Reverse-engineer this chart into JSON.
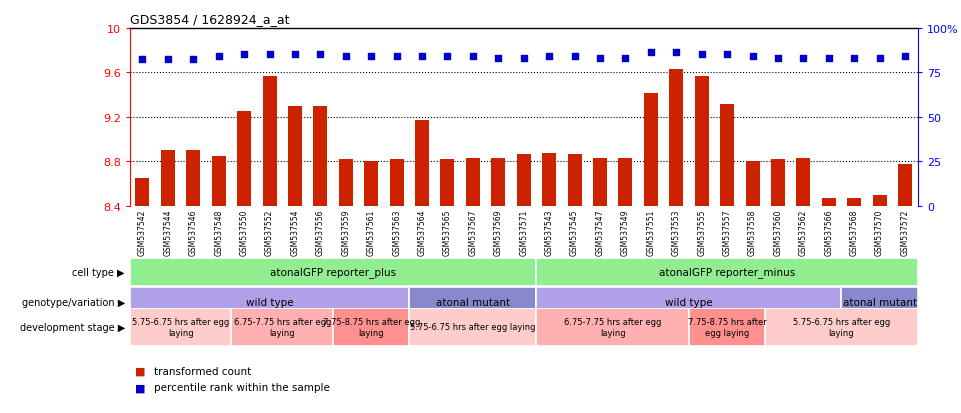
{
  "title": "GDS3854 / 1628924_a_at",
  "samples": [
    "GSM537542",
    "GSM537544",
    "GSM537546",
    "GSM537548",
    "GSM537550",
    "GSM537552",
    "GSM537554",
    "GSM537556",
    "GSM537559",
    "GSM537561",
    "GSM537563",
    "GSM537564",
    "GSM537565",
    "GSM537567",
    "GSM537569",
    "GSM537571",
    "GSM537543",
    "GSM537545",
    "GSM537547",
    "GSM537549",
    "GSM537551",
    "GSM537553",
    "GSM537555",
    "GSM537557",
    "GSM537558",
    "GSM537560",
    "GSM537562",
    "GSM537566",
    "GSM537568",
    "GSM537570",
    "GSM537572"
  ],
  "bar_values": [
    8.65,
    8.9,
    8.9,
    8.85,
    9.25,
    9.57,
    9.3,
    9.3,
    8.82,
    8.8,
    8.82,
    9.17,
    8.82,
    8.83,
    8.83,
    8.87,
    8.88,
    8.87,
    8.83,
    8.83,
    9.42,
    9.63,
    9.57,
    9.32,
    8.8,
    8.82,
    8.83,
    8.47,
    8.47,
    8.5,
    8.78
  ],
  "percentile_values": [
    9.72,
    9.72,
    9.72,
    9.75,
    9.77,
    9.77,
    9.77,
    9.77,
    9.75,
    9.75,
    9.75,
    9.75,
    9.75,
    9.75,
    9.73,
    9.73,
    9.75,
    9.75,
    9.73,
    9.73,
    9.78,
    9.78,
    9.77,
    9.77,
    9.75,
    9.73,
    9.73,
    9.73,
    9.73,
    9.73,
    9.75
  ],
  "ylim": [
    8.4,
    10.0
  ],
  "yticks": [
    8.4,
    8.8,
    9.2,
    9.6,
    10.0
  ],
  "ytick_labels": [
    "8.4",
    "8.8",
    "9.2",
    "9.6",
    "10"
  ],
  "bar_color": "#cc2200",
  "percentile_color": "#0000cc",
  "grid_values": [
    8.8,
    9.2,
    9.6
  ],
  "cell_type_regions": [
    {
      "label": "atonalGFP reporter_plus",
      "start": 0,
      "end": 15,
      "color": "#90ee90"
    },
    {
      "label": "atonalGFP reporter_minus",
      "start": 16,
      "end": 30,
      "color": "#90ee90"
    }
  ],
  "genotype_regions": [
    {
      "label": "wild type",
      "start": 0,
      "end": 10,
      "color": "#b0a0e8"
    },
    {
      "label": "atonal mutant",
      "start": 11,
      "end": 15,
      "color": "#8888cc"
    },
    {
      "label": "wild type",
      "start": 16,
      "end": 27,
      "color": "#b0a0e8"
    },
    {
      "label": "atonal mutant",
      "start": 28,
      "end": 30,
      "color": "#8888cc"
    }
  ],
  "dev_stage_regions": [
    {
      "label": "5.75-6.75 hrs after egg\nlaying",
      "start": 0,
      "end": 3,
      "color": "#ffcccc"
    },
    {
      "label": "6.75-7.75 hrs after egg\nlaying",
      "start": 4,
      "end": 7,
      "color": "#ffb0b0"
    },
    {
      "label": "7.75-8.75 hrs after egg\nlaying",
      "start": 8,
      "end": 10,
      "color": "#ff9090"
    },
    {
      "label": "5.75-6.75 hrs after egg laying",
      "start": 11,
      "end": 15,
      "color": "#ffcccc"
    },
    {
      "label": "6.75-7.75 hrs after egg\nlaying",
      "start": 16,
      "end": 21,
      "color": "#ffb0b0"
    },
    {
      "label": "7.75-8.75 hrs after\negg laying",
      "start": 22,
      "end": 24,
      "color": "#ff9090"
    },
    {
      "label": "5.75-6.75 hrs after egg\nlaying",
      "start": 25,
      "end": 30,
      "color": "#ffcccc"
    }
  ]
}
